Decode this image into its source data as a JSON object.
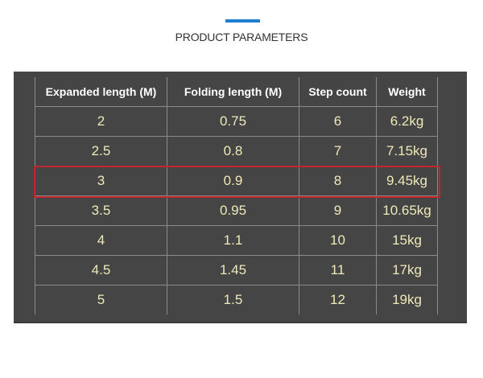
{
  "title": "PRODUCT PARAMETERS",
  "colors": {
    "accent": "#1f7fd0",
    "panel": "#454545",
    "highlight_border": "#c0262b",
    "value_text": "#efe9b9"
  },
  "table": {
    "headers": [
      "Expanded length (M)",
      "Folding length (M)",
      "Step count",
      "Weight"
    ],
    "rows": [
      [
        "2",
        "0.75",
        "6",
        "6.2kg"
      ],
      [
        "2.5",
        "0.8",
        "7",
        "7.15kg"
      ],
      [
        "3",
        "0.9",
        "8",
        "9.45kg"
      ],
      [
        "3.5",
        "0.95",
        "9",
        "10.65kg"
      ],
      [
        "4",
        "1.1",
        "10",
        "15kg"
      ],
      [
        "4.5",
        "1.45",
        "11",
        "17kg"
      ],
      [
        "5",
        "1.5",
        "12",
        "19kg"
      ]
    ],
    "highlighted_row": 2
  }
}
